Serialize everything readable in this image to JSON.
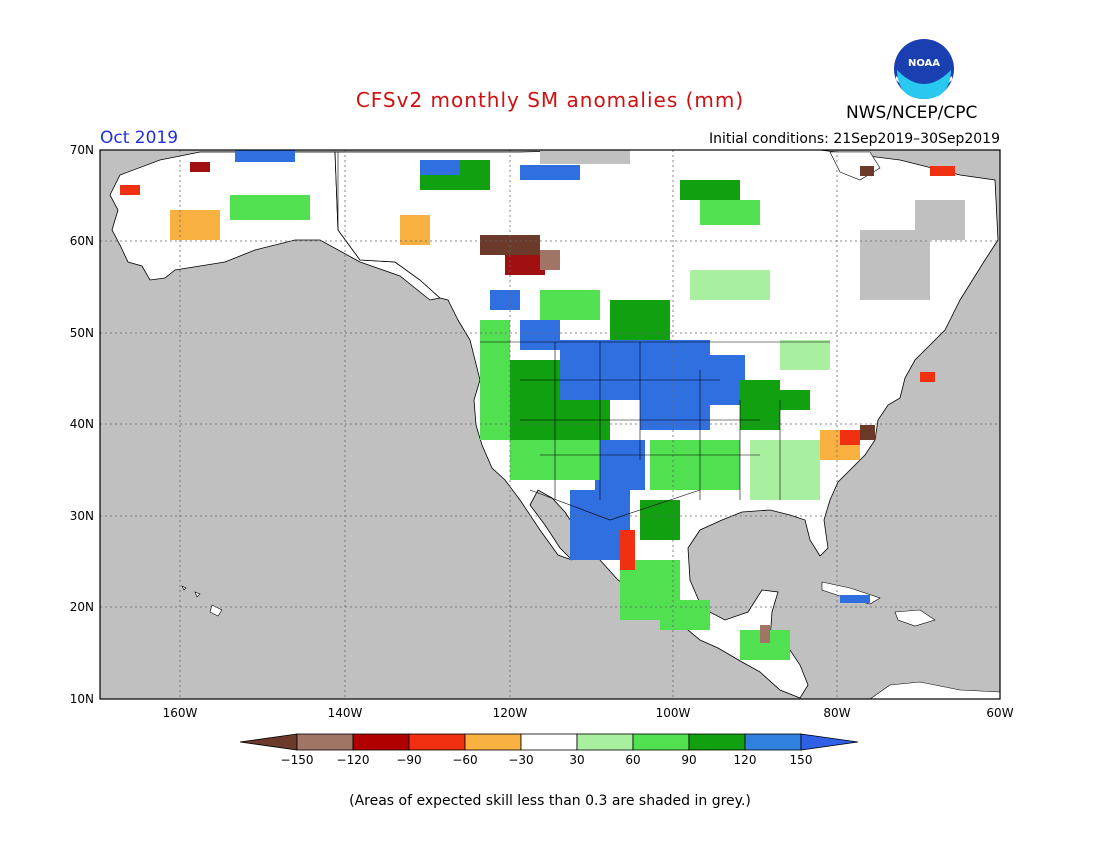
{
  "title": "CFSv2 monthly SM anomalies (mm)",
  "agency": "NWS/NCEP/CPC",
  "logo_text": "NOAA",
  "valid_month": "Oct 2019",
  "initial_conditions": "Initial conditions: 21Sep2019–30Sep2019",
  "footnote": "(Areas of expected skill less than 0.3 are shaded in grey.)",
  "axes": {
    "lat_labels": [
      "70N",
      "60N",
      "50N",
      "40N",
      "30N",
      "20N",
      "10N"
    ],
    "lon_labels": [
      "160W",
      "140W",
      "120W",
      "100W",
      "80W",
      "60W"
    ]
  },
  "colorbar": {
    "labels": [
      "−150",
      "−120",
      "−90",
      "−60",
      "−30",
      "30",
      "60",
      "90",
      "120",
      "150"
    ],
    "colors": [
      "#6b3a2a",
      "#a07565",
      "#b00000",
      "#f03010",
      "#f8b040",
      "#ffffff",
      "#a8f0a0",
      "#50e050",
      "#10a010",
      "#3080e0",
      "#3060e8"
    ]
  },
  "colors": {
    "ocean": "#c0c0c0",
    "land_neutral": "#ffffff",
    "wet_strong": "#2f6fe0",
    "wet_mod": "#10a010",
    "wet_light": "#50e050"
  }
}
